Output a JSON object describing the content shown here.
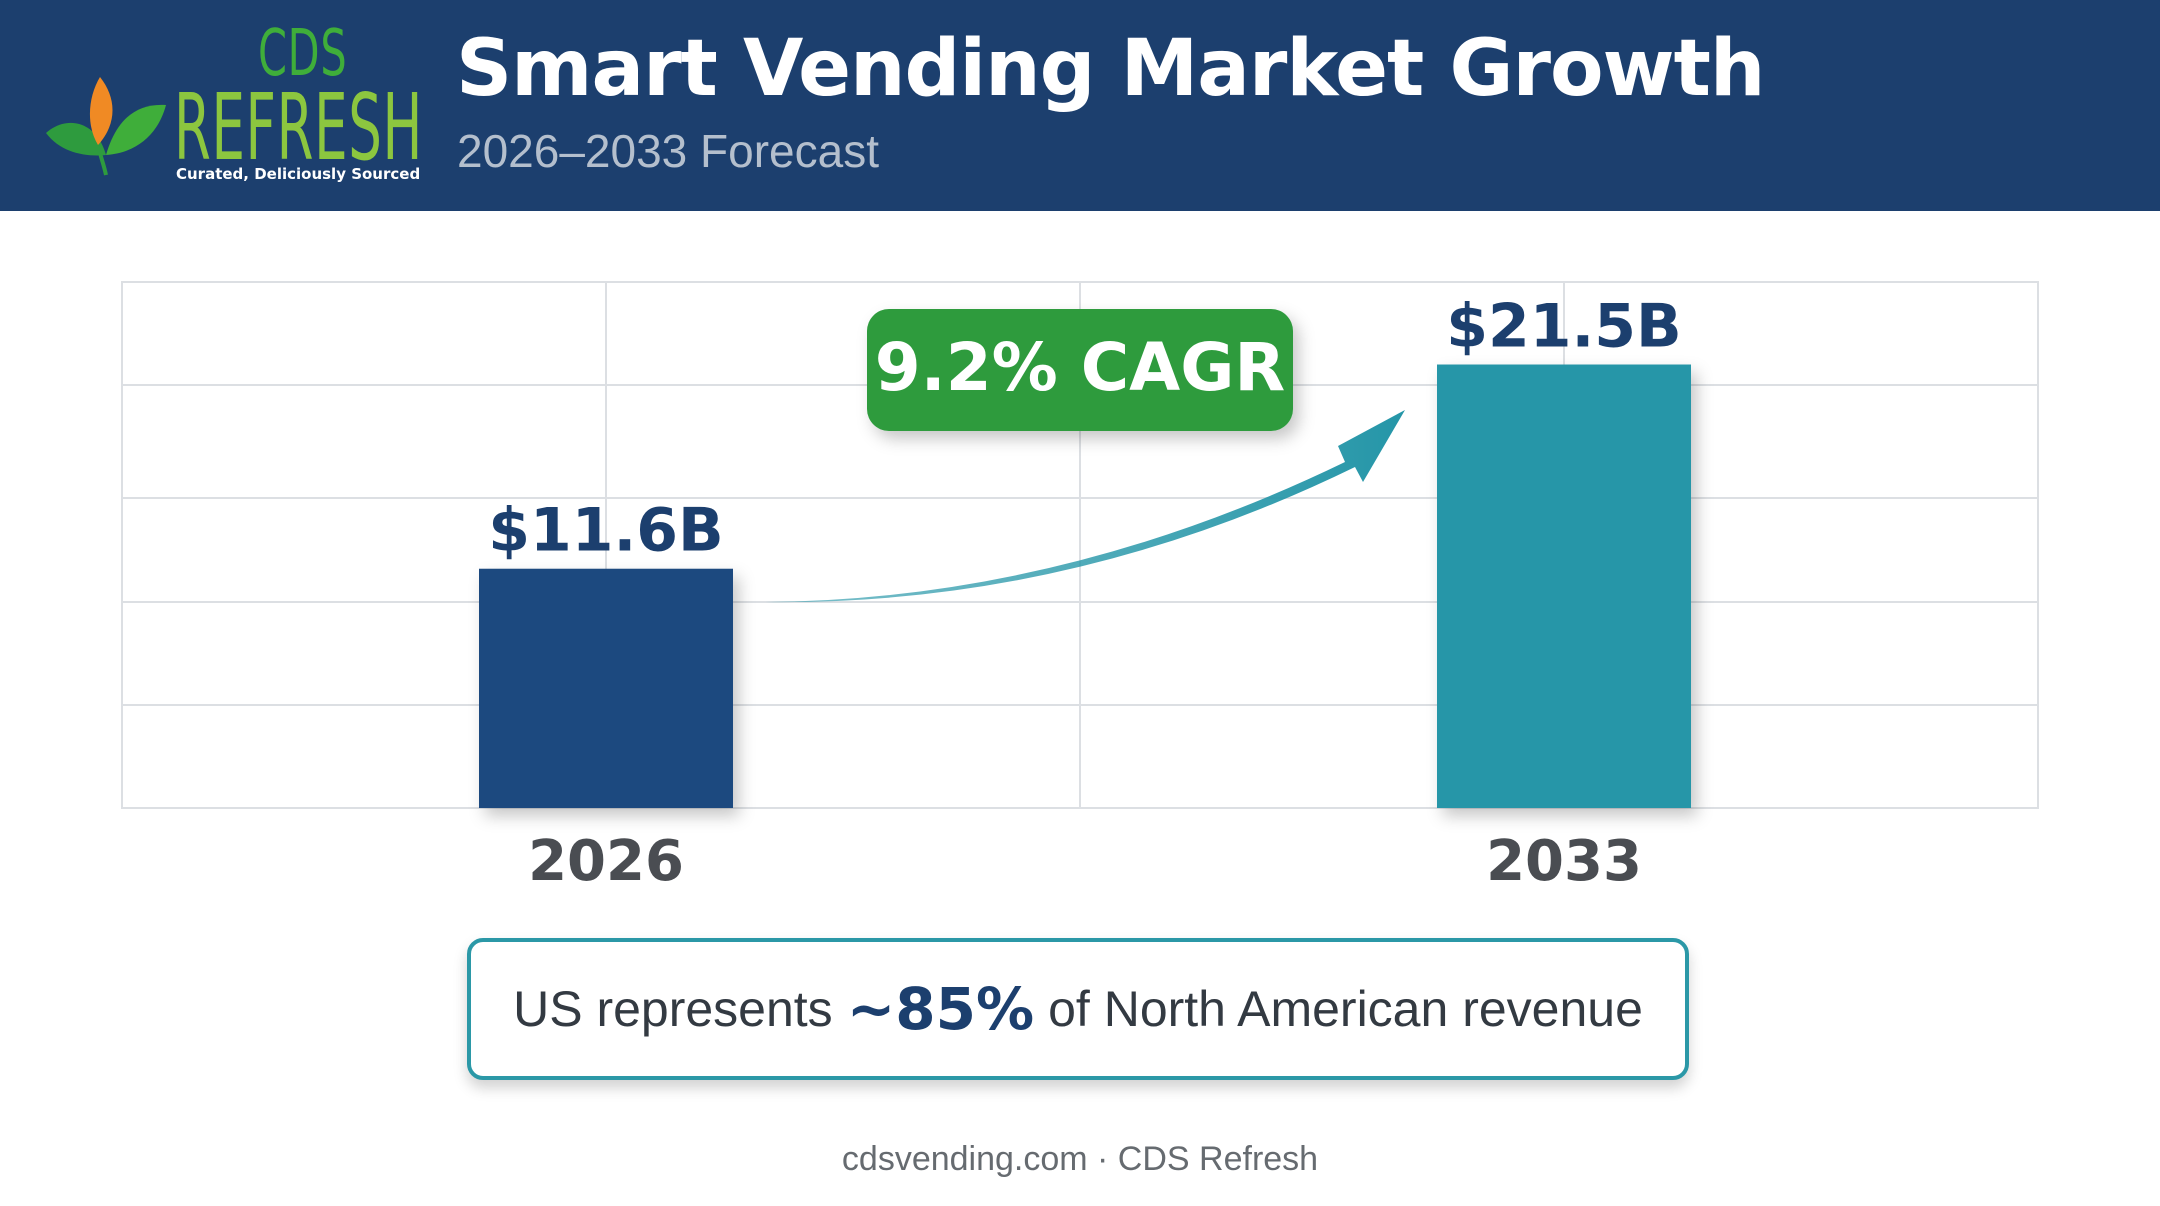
{
  "header": {
    "title": "Smart Vending Market Growth",
    "subtitle": "2026–2033 Forecast",
    "logo": {
      "line1": "CDS",
      "line2": "REFRESH",
      "tagline": "Curated, Deliciously Sourced"
    }
  },
  "colors": {
    "header_bg": "#1c3f6e",
    "bar_2026": "#1d4a7f",
    "bar_2033": "#2596a8",
    "cagr_badge": "#2e9b3e",
    "accent_text": "#1c3f6e"
  },
  "chart_data": {
    "type": "bar",
    "categories": [
      "2026",
      "2033"
    ],
    "values": [
      11.6,
      21.5
    ],
    "value_labels": [
      "$11.6B",
      "$21.5B"
    ],
    "annotation": "9.2% CAGR",
    "ylim": [
      0,
      25.5
    ],
    "grid": true,
    "legend": "none"
  },
  "callout": {
    "prefix": "US represents",
    "highlight": "~85%",
    "suffix": "of North American revenue"
  },
  "footer": "cdsvending.com · CDS Refresh"
}
